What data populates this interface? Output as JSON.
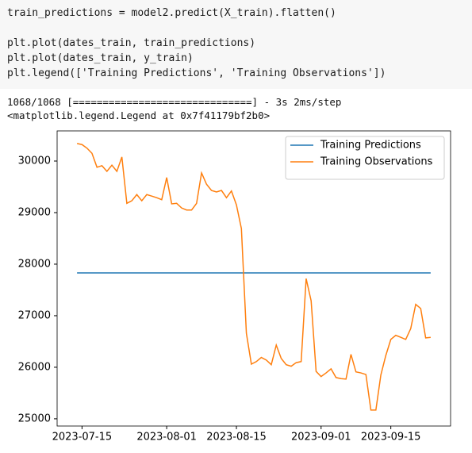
{
  "code": {
    "lines": [
      "train_predictions = model2.predict(X_train).flatten()",
      "plt.plot(dates_train, train_predictions)",
      "plt.plot(dates_train, y_train)",
      "plt.legend(['Training Predictions', 'Training Observations'])"
    ]
  },
  "output": {
    "lines": [
      "1068/1068 [==============================] - 3s 2ms/step",
      "<matplotlib.legend.Legend at 0x7f41179bf2b0>"
    ]
  },
  "chart_data": {
    "type": "line",
    "x": [
      "2023-07-14",
      "2023-07-15",
      "2023-07-16",
      "2023-07-17",
      "2023-07-18",
      "2023-07-19",
      "2023-07-20",
      "2023-07-21",
      "2023-07-22",
      "2023-07-23",
      "2023-07-24",
      "2023-07-25",
      "2023-07-26",
      "2023-07-27",
      "2023-07-28",
      "2023-07-29",
      "2023-07-30",
      "2023-07-31",
      "2023-08-01",
      "2023-08-02",
      "2023-08-03",
      "2023-08-04",
      "2023-08-05",
      "2023-08-06",
      "2023-08-07",
      "2023-08-08",
      "2023-08-09",
      "2023-08-10",
      "2023-08-11",
      "2023-08-12",
      "2023-08-13",
      "2023-08-14",
      "2023-08-15",
      "2023-08-16",
      "2023-08-17",
      "2023-08-18",
      "2023-08-19",
      "2023-08-20",
      "2023-08-21",
      "2023-08-22",
      "2023-08-23",
      "2023-08-24",
      "2023-08-25",
      "2023-08-26",
      "2023-08-27",
      "2023-08-28",
      "2023-08-29",
      "2023-08-30",
      "2023-08-31",
      "2023-09-01",
      "2023-09-02",
      "2023-09-03",
      "2023-09-04",
      "2023-09-05",
      "2023-09-06",
      "2023-09-07",
      "2023-09-08",
      "2023-09-09",
      "2023-09-10",
      "2023-09-11",
      "2023-09-12",
      "2023-09-13",
      "2023-09-14",
      "2023-09-15",
      "2023-09-16",
      "2023-09-17",
      "2023-09-18",
      "2023-09-19",
      "2023-09-20",
      "2023-09-21",
      "2023-09-22",
      "2023-09-23"
    ],
    "series": [
      {
        "name": "Training Predictions",
        "color": "#1f77b4",
        "values": [
          27830,
          27830,
          27830,
          27830,
          27830,
          27830,
          27830,
          27830,
          27830,
          27830,
          27830,
          27830,
          27830,
          27830,
          27830,
          27830,
          27830,
          27830,
          27830,
          27830,
          27830,
          27830,
          27830,
          27830,
          27830,
          27830,
          27830,
          27830,
          27830,
          27830,
          27830,
          27830,
          27830,
          27830,
          27830,
          27830,
          27830,
          27830,
          27830,
          27830,
          27830,
          27830,
          27830,
          27830,
          27830,
          27830,
          27830,
          27830,
          27830,
          27830,
          27830,
          27830,
          27830,
          27830,
          27830,
          27830,
          27830,
          27830,
          27830,
          27830,
          27830,
          27830,
          27830,
          27830,
          27830,
          27830,
          27830,
          27830,
          27830,
          27830,
          27830,
          27830
        ]
      },
      {
        "name": "Training Observations",
        "color": "#ff7f0e",
        "values": [
          30340,
          30320,
          30250,
          30150,
          29880,
          29910,
          29800,
          29920,
          29800,
          30080,
          29180,
          29230,
          29350,
          29230,
          29350,
          29320,
          29290,
          29250,
          29680,
          29170,
          29180,
          29090,
          29050,
          29050,
          29180,
          29770,
          29550,
          29430,
          29400,
          29430,
          29290,
          29420,
          29150,
          28690,
          26660,
          26060,
          26110,
          26190,
          26140,
          26050,
          26430,
          26170,
          26050,
          26020,
          26090,
          26110,
          27720,
          27290,
          25920,
          25820,
          25890,
          25970,
          25800,
          25780,
          25770,
          26250,
          25910,
          25890,
          25860,
          25170,
          25170,
          25850,
          26230,
          26540,
          26620,
          26580,
          26540,
          26750,
          27220,
          27140,
          26570,
          26580
        ]
      }
    ],
    "xlim": [
      "2023-07-10",
      "2023-09-27"
    ],
    "xticks": [
      "2023-07-15",
      "2023-08-01",
      "2023-08-15",
      "2023-09-01",
      "2023-09-15"
    ],
    "ylim": [
      24860,
      30585
    ],
    "yticks": [
      25000,
      26000,
      27000,
      28000,
      29000,
      30000
    ],
    "legend": "upper right"
  }
}
